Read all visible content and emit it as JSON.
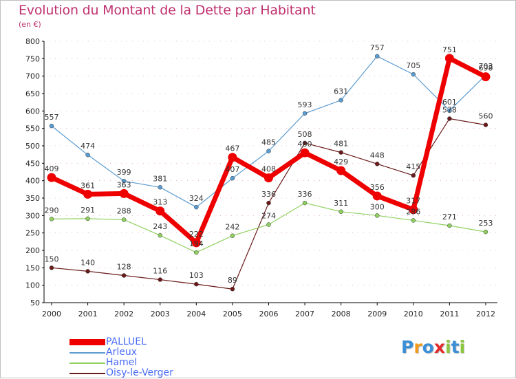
{
  "title": "Evolution du Montant de la Dette par Habitant",
  "unit": "(en €)",
  "colors": {
    "title": "#c0306f",
    "legend_text": "#4a6cf7",
    "axis": "#000000",
    "grid": "#c0306f",
    "label": "#333333"
  },
  "logo": {
    "letters": [
      "P",
      "r",
      "o",
      "x",
      "i",
      "t",
      "i"
    ],
    "colors": [
      "#3a8fd6",
      "#f39a1b",
      "#3a8fd6",
      "#e32b2b",
      "#8cc63f",
      "#3a8fd6",
      "#8cc63f"
    ]
  },
  "chart_data": {
    "type": "line",
    "x": [
      "2000",
      "2001",
      "2002",
      "2003",
      "2004",
      "2005",
      "2006",
      "2007",
      "2008",
      "2009",
      "2010",
      "2011",
      "2012"
    ],
    "ylim": [
      50,
      800
    ],
    "yticks": [
      50,
      100,
      150,
      200,
      250,
      300,
      350,
      400,
      450,
      500,
      550,
      600,
      650,
      700,
      750,
      800
    ],
    "series": [
      {
        "name": "Oisy-le-Verger",
        "color": "#6b1a1a",
        "width": 1.2,
        "marker": 3,
        "values": [
          150,
          140,
          128,
          116,
          103,
          89,
          336,
          508,
          481,
          448,
          415,
          578,
          560
        ]
      },
      {
        "name": "Hamel",
        "color": "#90d060",
        "width": 1.2,
        "marker": 3,
        "values": [
          290,
          291,
          288,
          243,
          194,
          242,
          274,
          336,
          311,
          300,
          286,
          271,
          253
        ]
      },
      {
        "name": "Arleux",
        "color": "#5a9bd0",
        "width": 1.2,
        "marker": 3,
        "values": [
          557,
          474,
          399,
          381,
          324,
          407,
          485,
          593,
          631,
          757,
          705,
          601,
          703
        ]
      },
      {
        "name": "PALLUEL",
        "color": "#ee0000",
        "width": 7,
        "marker": 6.5,
        "values": [
          409,
          361,
          363,
          313,
          222,
          467,
          408,
          480,
          429,
          356,
          317,
          751,
          698
        ]
      }
    ],
    "legend": {
      "position": "bottom-left",
      "entries": [
        "PALLUEL",
        "Arleux",
        "Hamel",
        "Oisy-le-Verger"
      ]
    }
  }
}
